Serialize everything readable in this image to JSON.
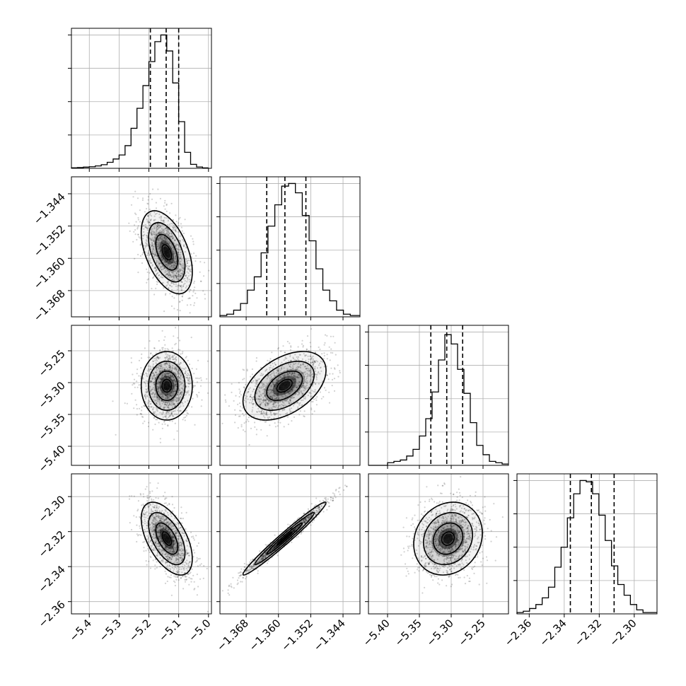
{
  "chart_data": {
    "type": "corner",
    "grid": true,
    "parameters": [
      {
        "ticks": [
          -5.4,
          -5.3,
          -5.2,
          -5.1,
          -5.0
        ],
        "tick_labels": [
          "−5.4",
          "−5.3",
          "−5.2",
          "−5.1",
          "−5.0"
        ],
        "range": [
          -5.46,
          -4.99
        ],
        "mean": -5.14,
        "std": 0.035,
        "quantiles": [
          -5.195,
          -5.142,
          -5.1
        ],
        "hist_bins": [
          -5.46,
          -5.44,
          -5.42,
          -5.4,
          -5.38,
          -5.36,
          -5.34,
          -5.32,
          -5.3,
          -5.28,
          -5.26,
          -5.24,
          -5.22,
          -5.2,
          -5.18,
          -5.16,
          -5.14,
          -5.12,
          -5.1,
          -5.08,
          -5.06,
          -5.04,
          -5.02,
          -5.0
        ],
        "hist_values": [
          0.004,
          0.006,
          0.009,
          0.012,
          0.018,
          0.027,
          0.045,
          0.07,
          0.1,
          0.17,
          0.3,
          0.45,
          0.62,
          0.8,
          0.95,
          1.0,
          0.88,
          0.64,
          0.35,
          0.12,
          0.03,
          0.01,
          0.003
        ]
      },
      {
        "ticks": [
          -1.368,
          -1.36,
          -1.352,
          -1.344
        ],
        "tick_labels": [
          "−1.368",
          "−1.360",
          "−1.352",
          "−1.344"
        ],
        "range": [
          -1.3745,
          -1.3398
        ],
        "mean": -1.3585,
        "std": 0.0042,
        "quantiles": [
          -1.3629,
          -1.3584,
          -1.3532
        ],
        "hist_bins": [
          -1.3745,
          -1.3728,
          -1.3711,
          -1.3694,
          -1.3677,
          -1.366,
          -1.3643,
          -1.3626,
          -1.3609,
          -1.3592,
          -1.3575,
          -1.3558,
          -1.3541,
          -1.3524,
          -1.3507,
          -1.349,
          -1.3473,
          -1.3456,
          -1.3439,
          -1.3422,
          -1.3405,
          -1.3398
        ],
        "hist_values": [
          0.01,
          0.02,
          0.05,
          0.1,
          0.2,
          0.3,
          0.48,
          0.68,
          0.84,
          0.98,
          1.0,
          0.93,
          0.76,
          0.57,
          0.36,
          0.2,
          0.12,
          0.05,
          0.02,
          0.01,
          0.01
        ]
      },
      {
        "ticks": [
          -5.4,
          -5.35,
          -5.3,
          -5.25
        ],
        "tick_labels": [
          "−5.40",
          "−5.35",
          "−5.30",
          "−5.25"
        ],
        "range": [
          -5.43,
          -5.21
        ],
        "mean": -5.305,
        "std": 0.022,
        "quantiles": [
          -5.332,
          -5.307,
          -5.282
        ],
        "hist_bins": [
          -5.43,
          -5.42,
          -5.41,
          -5.4,
          -5.39,
          -5.38,
          -5.37,
          -5.36,
          -5.35,
          -5.34,
          -5.33,
          -5.32,
          -5.31,
          -5.3,
          -5.29,
          -5.28,
          -5.27,
          -5.26,
          -5.25,
          -5.24,
          -5.23,
          -5.22,
          -5.21
        ],
        "hist_values": [
          0.0,
          0.0,
          0.0,
          0.02,
          0.03,
          0.04,
          0.07,
          0.12,
          0.22,
          0.35,
          0.55,
          0.79,
          0.98,
          0.91,
          0.72,
          0.54,
          0.32,
          0.15,
          0.08,
          0.03,
          0.02,
          0.01
        ]
      },
      {
        "ticks": [
          -2.36,
          -2.34,
          -2.32,
          -2.3
        ],
        "tick_labels": [
          "−2.36",
          "−2.34",
          "−2.32",
          "−2.30"
        ],
        "range": [
          -2.367,
          -2.287
        ],
        "mean": -2.324,
        "std": 0.0085,
        "quantiles": [
          -2.3365,
          -2.3245,
          -2.3115
        ],
        "hist_bins": [
          -2.367,
          -2.3634,
          -2.3598,
          -2.3562,
          -2.3526,
          -2.349,
          -2.3454,
          -2.3418,
          -2.3382,
          -2.3346,
          -2.331,
          -2.3274,
          -2.3238,
          -2.3202,
          -2.3166,
          -2.313,
          -2.3094,
          -2.3058,
          -2.3022,
          -2.2986,
          -2.295,
          -2.2914,
          -2.287
        ],
        "hist_values": [
          0.01,
          0.02,
          0.04,
          0.07,
          0.12,
          0.2,
          0.35,
          0.5,
          0.72,
          0.9,
          1.0,
          0.99,
          0.9,
          0.74,
          0.55,
          0.36,
          0.22,
          0.14,
          0.07,
          0.03,
          0.01,
          0.01
        ]
      }
    ],
    "correlations": [
      [
        1.0,
        -0.48,
        0.0,
        -0.55
      ],
      [
        -0.48,
        1.0,
        0.45,
        0.98
      ],
      [
        0.0,
        0.45,
        1.0,
        0.15
      ],
      [
        -0.55,
        0.98,
        0.15,
        1.0
      ]
    ],
    "hist_ylim": [
      0,
      1.05
    ]
  }
}
